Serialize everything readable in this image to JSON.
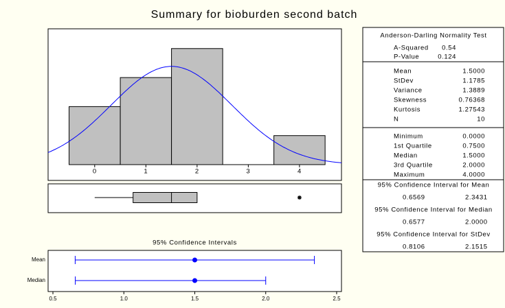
{
  "title": "Summary for bioburden second batch",
  "chart_data": [
    {
      "type": "histogram",
      "bins": [
        -0.5,
        0.5,
        1.5,
        2.5,
        3.5,
        4.5
      ],
      "values": [
        2,
        3,
        4,
        0,
        1
      ],
      "color": "#c0c0c0",
      "xlim": [
        -0.91,
        4.82
      ],
      "ylim": [
        0,
        4.68
      ],
      "xticks": [
        0,
        1,
        2,
        3,
        4
      ],
      "normal_fit": {
        "mean": 1.5,
        "stdev": 1.1785,
        "n": 10,
        "color": "#0000ff"
      }
    },
    {
      "type": "boxplot",
      "whisker_low": 0,
      "q1": 0.75,
      "median": 1.5,
      "q3": 2.0,
      "whisker_high": 2.0,
      "outliers": [
        4
      ],
      "color": "#c0c0c0",
      "xlim": [
        -0.91,
        4.82
      ]
    },
    {
      "type": "interval",
      "title": "95% Confidence Intervals",
      "categories": [
        "Mean",
        "Median"
      ],
      "values": [
        1.5,
        1.5
      ],
      "lower": [
        0.6569,
        0.6577
      ],
      "upper": [
        2.3431,
        2.0
      ],
      "color": "#0000ff",
      "xlim": [
        0.466,
        2.534
      ],
      "xticks": [
        0.5,
        {
          "value": 1,
          "label": "1.0"
        },
        1.5,
        {
          "value": 2,
          "label": "2.0"
        },
        2.5
      ]
    }
  ],
  "stats_table": {
    "sections": [
      {
        "heading": "Anderson-Darling Normality Test",
        "rows": [
          [
            "A-Squared",
            "0.54"
          ],
          [
            "P-Value",
            "0.124"
          ]
        ]
      },
      {
        "rows": [
          [
            "Mean",
            "1.5000"
          ],
          [
            "StDev",
            "1.1785"
          ],
          [
            "Variance",
            "1.3889"
          ],
          [
            "Skewness",
            "0.76368"
          ],
          [
            "Kurtosis",
            "1.27543"
          ],
          [
            "N",
            "10"
          ]
        ]
      },
      {
        "rows": [
          [
            "Minimum",
            "0.0000"
          ],
          [
            "1st Quartile",
            "0.7500"
          ],
          [
            "Median",
            "1.5000"
          ],
          [
            "3rd Quartile",
            "2.0000"
          ],
          [
            "Maximum",
            "4.0000"
          ]
        ]
      }
    ],
    "intervals": [
      {
        "heading": "95% Confidence Interval for Mean",
        "values": [
          "0.6569",
          "2.3431"
        ]
      },
      {
        "heading": "95% Confidence Interval for Median",
        "values": [
          "0.6577",
          "2.0000"
        ]
      },
      {
        "heading": "95% Confidence Interval for StDev",
        "values": [
          "0.8106",
          "2.1515"
        ]
      }
    ]
  }
}
